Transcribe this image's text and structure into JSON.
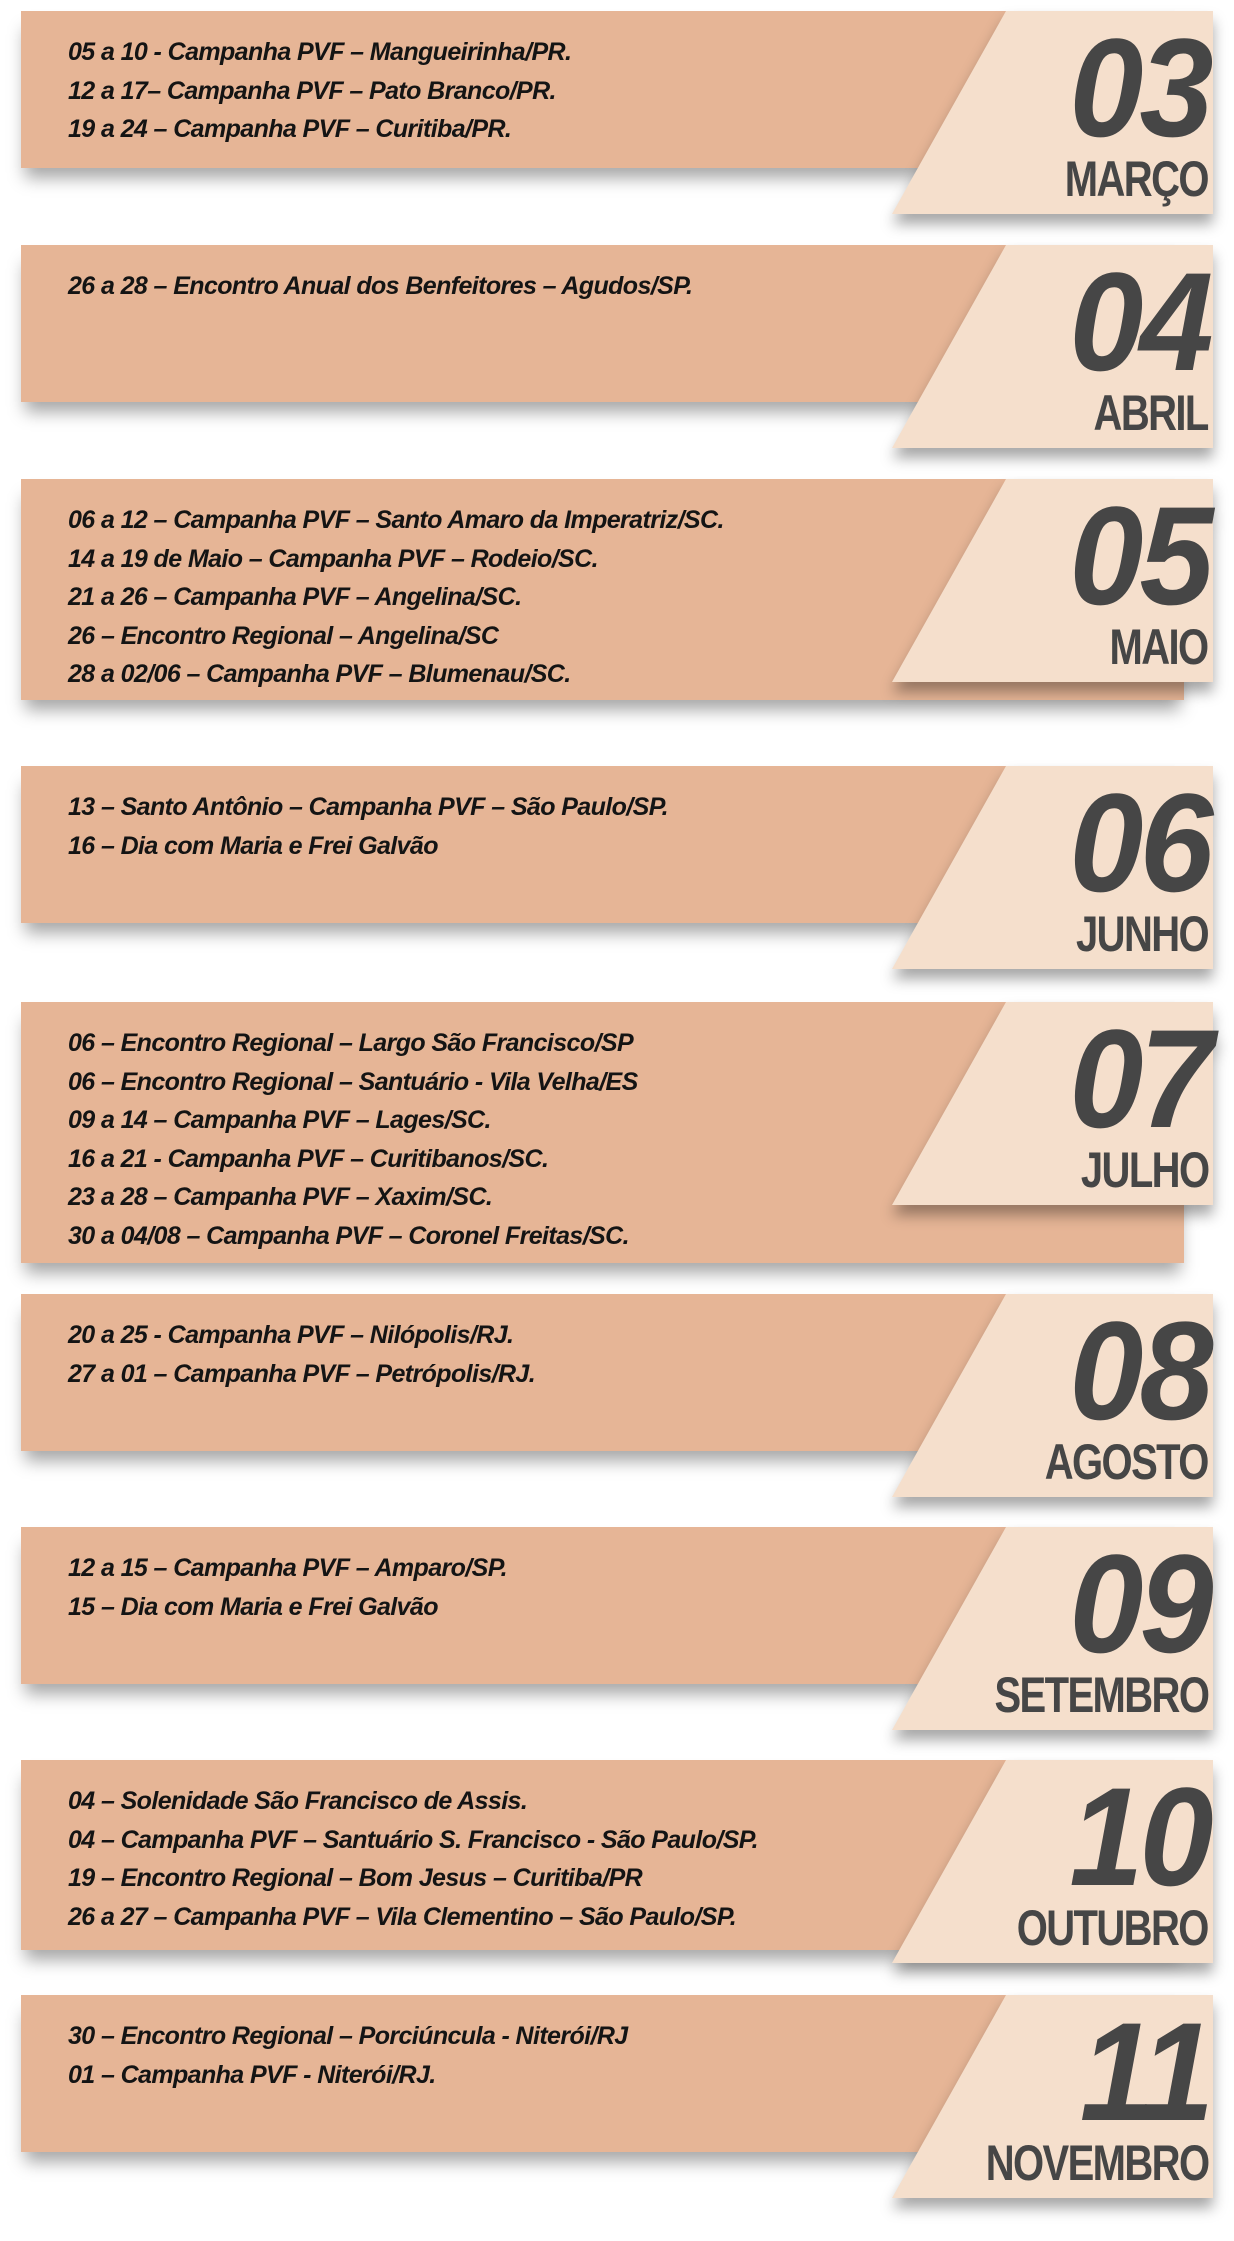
{
  "colors": {
    "band": "#e6b596",
    "tag": "#f5dfcc",
    "number": "#464646",
    "text": "#141414"
  },
  "months": [
    {
      "number": "03",
      "name": "MARÇO",
      "events": [
        "05 a 10 - Campanha PVF – Mangueirinha/PR.",
        "12 a 17– Campanha PVF – Pato Branco/PR.",
        "19 a 24 – Campanha PVF – Curitiba/PR."
      ]
    },
    {
      "number": "04",
      "name": "ABRIL",
      "events": [
        "26 a 28 – Encontro Anual dos Benfeitores – Agudos/SP."
      ]
    },
    {
      "number": "05",
      "name": "MAIO",
      "events": [
        "06 a 12 – Campanha PVF – Santo Amaro da Imperatriz/SC.",
        "14 a 19 de Maio – Campanha PVF – Rodeio/SC.",
        "21 a 26 – Campanha PVF – Angelina/SC.",
        "26 – Encontro Regional – Angelina/SC",
        "28 a 02/06 – Campanha PVF – Blumenau/SC."
      ]
    },
    {
      "number": "06",
      "name": "JUNHO",
      "events": [
        "13 – Santo Antônio – Campanha PVF – São Paulo/SP.",
        "16 – Dia com Maria e Frei Galvão"
      ]
    },
    {
      "number": "07",
      "name": "JULHO",
      "events": [
        "06 – Encontro Regional – Largo São Francisco/SP",
        "06 – Encontro Regional – Santuário - Vila Velha/ES",
        "09 a 14 – Campanha PVF – Lages/SC.",
        "16 a 21 - Campanha PVF – Curitibanos/SC.",
        "23 a 28 – Campanha PVF – Xaxim/SC.",
        "30 a 04/08 – Campanha PVF – Coronel Freitas/SC."
      ]
    },
    {
      "number": "08",
      "name": "AGOSTO",
      "events": [
        "20 a 25 - Campanha PVF – Nilópolis/RJ.",
        "27 a 01 – Campanha PVF – Petrópolis/RJ."
      ]
    },
    {
      "number": "09",
      "name": "SETEMBRO",
      "events": [
        "12 a 15 – Campanha PVF – Amparo/SP.",
        "15 – Dia com Maria e Frei Galvão"
      ]
    },
    {
      "number": "10",
      "name": "OUTUBRO",
      "events": [
        "04 – Solenidade São Francisco de Assis.",
        "04 – Campanha PVF – Santuário S. Francisco - São Paulo/SP.",
        "19 – Encontro Regional – Bom Jesus – Curitiba/PR",
        "26 a 27 – Campanha PVF – Vila Clementino – São Paulo/SP."
      ]
    },
    {
      "number": "11",
      "name": "NOVEMBRO",
      "events": [
        "30 – Encontro Regional – Porciúncula - Niterói/RJ",
        "01 – Campanha PVF - Niterói/RJ."
      ]
    }
  ]
}
